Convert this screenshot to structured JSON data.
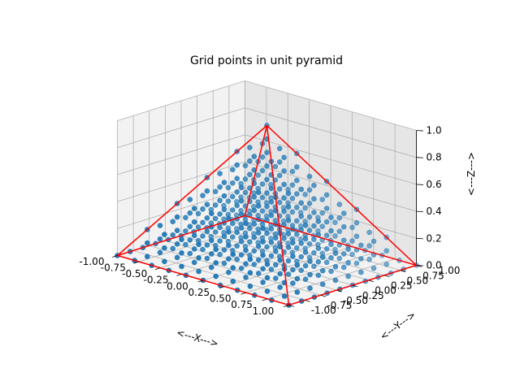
{
  "chart_data": {
    "type": "scatter",
    "title": "Grid points in unit pyramid",
    "xlabel": "<---X--->",
    "ylabel": "<---Y--->",
    "zlabel": "<---Z--->",
    "xlim": [
      -1.0,
      1.0
    ],
    "ylim": [
      -1.0,
      1.0
    ],
    "zlim": [
      0.0,
      1.0
    ],
    "x_ticks": [
      "-1.00",
      "-0.75",
      "-0.50",
      "-0.25",
      "0.00",
      "0.25",
      "0.50",
      "0.75",
      "1.00"
    ],
    "y_ticks": [
      "-1.00",
      "-0.75",
      "-0.50",
      "-0.25",
      "0.00",
      "0.25",
      "0.50",
      "0.75",
      "1.00"
    ],
    "z_ticks": [
      "0.0",
      "0.2",
      "0.4",
      "0.6",
      "0.8",
      "1.0"
    ],
    "grid": true,
    "points_description": "lattice points inside the square pyramid |x| + z <= 1, |y| + z <= 1, z >= 0",
    "grid_step_xy": 0.2,
    "grid_step_z": 0.1,
    "pyramid": {
      "base_corners": [
        [
          -1,
          -1,
          0
        ],
        [
          1,
          -1,
          0
        ],
        [
          1,
          1,
          0
        ],
        [
          -1,
          1,
          0
        ]
      ],
      "apex": [
        0,
        0,
        1
      ]
    },
    "colors": {
      "points": "#1f77b4",
      "pyramid_edges": "#ff0000"
    }
  }
}
